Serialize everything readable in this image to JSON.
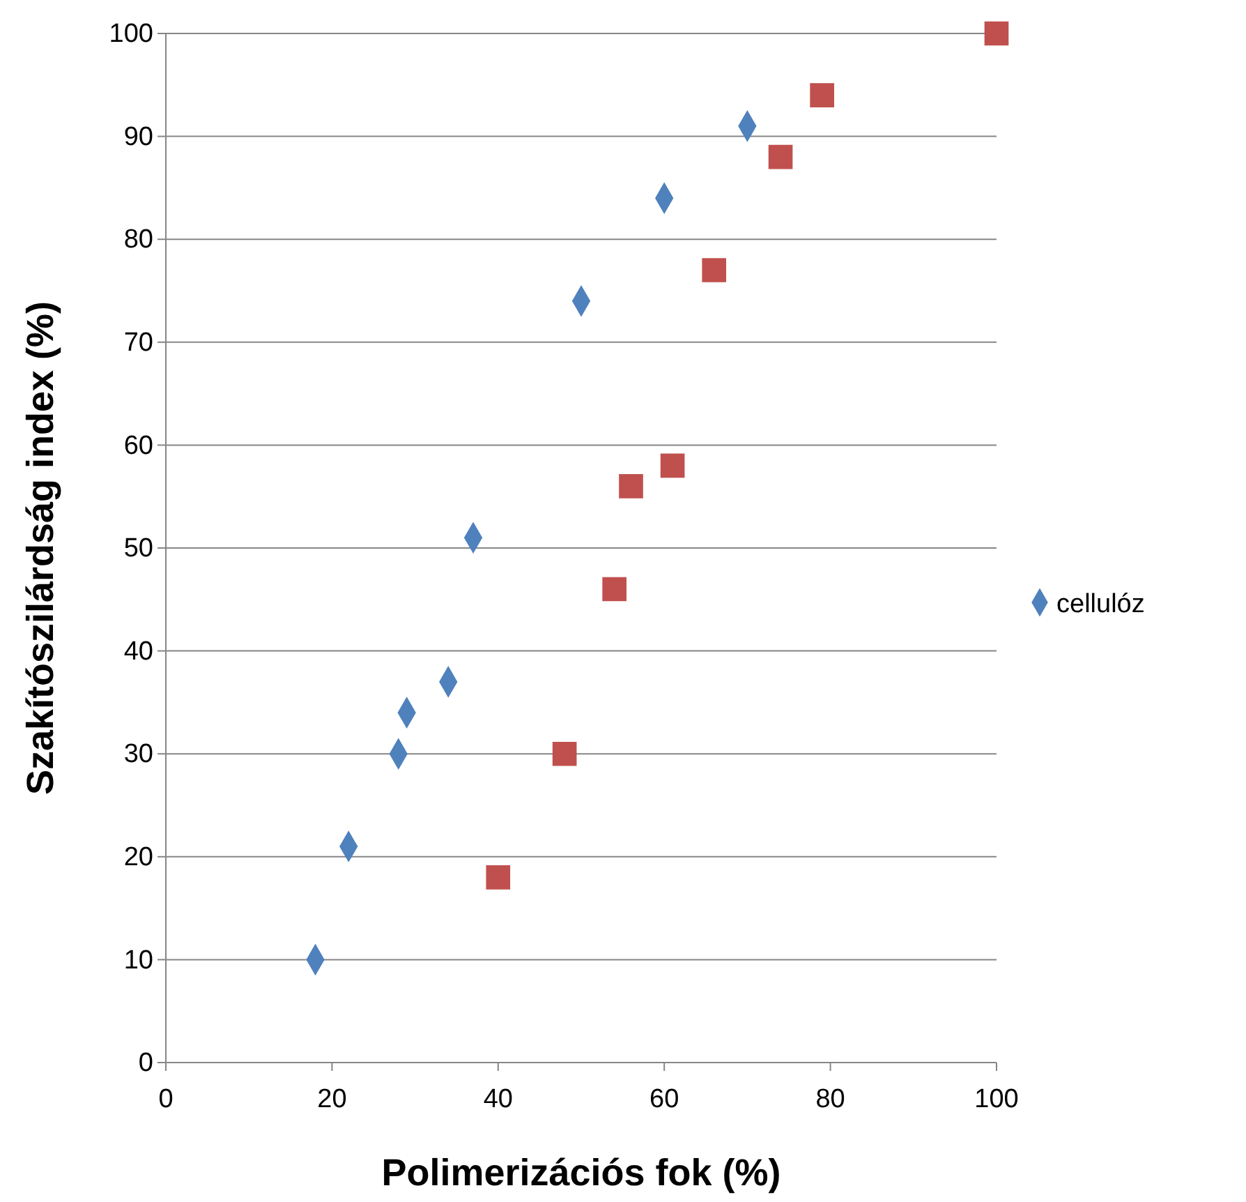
{
  "chart_data": {
    "type": "scatter",
    "xlabel": "Polimerizációs fok (%)",
    "ylabel": "Szakítószilárdság index (%)",
    "xlim": [
      0,
      100
    ],
    "xticks": [
      0,
      20,
      40,
      60,
      80,
      100
    ],
    "ylim": [
      0,
      100
    ],
    "yticks": [
      0,
      10,
      20,
      30,
      40,
      50,
      60,
      70,
      80,
      90,
      100
    ],
    "grid": "y",
    "legend": "right",
    "series": [
      {
        "name": "cellulóz",
        "color": "#4f81bd",
        "marker": "diamond",
        "x": [
          18,
          22,
          28,
          29,
          34,
          37,
          50,
          60,
          70
        ],
        "values": [
          10,
          21,
          30,
          34,
          37,
          51,
          74,
          84,
          91
        ]
      },
      {
        "color": "#c0504d",
        "marker": "square",
        "x": [
          40,
          48,
          54,
          56,
          61,
          66,
          74,
          79,
          100
        ],
        "values": [
          18,
          30,
          46,
          56,
          58,
          77,
          88,
          94,
          100
        ]
      }
    ]
  }
}
